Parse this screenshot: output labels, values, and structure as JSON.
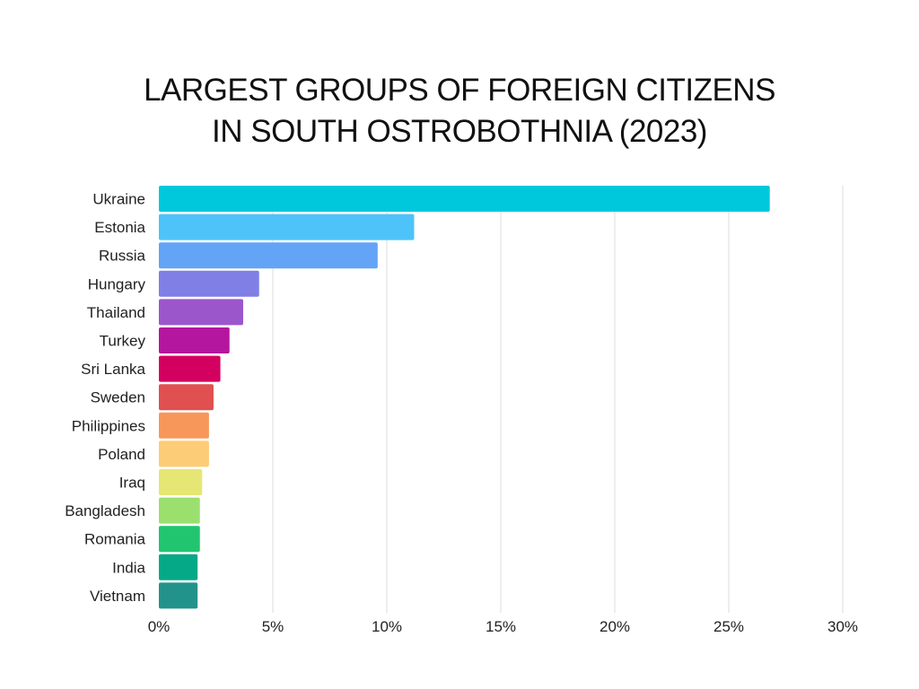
{
  "chart_data": {
    "type": "bar",
    "orientation": "horizontal",
    "title_lines": [
      "LARGEST GROUPS OF FOREIGN CITIZENS",
      "IN SOUTH OSTROBOTHNIA (2023)"
    ],
    "categories": [
      "Ukraine",
      "Estonia",
      "Russia",
      "Hungary",
      "Thailand",
      "Turkey",
      "Sri Lanka",
      "Sweden",
      "Philippines",
      "Poland",
      "Iraq",
      "Bangladesh",
      "Romania",
      "India",
      "Vietnam"
    ],
    "values": [
      26.8,
      11.2,
      9.6,
      4.4,
      3.7,
      3.1,
      2.7,
      2.4,
      2.2,
      2.2,
      1.9,
      1.8,
      1.8,
      1.7,
      1.7
    ],
    "colors": [
      "#00c8dc",
      "#4dc3fa",
      "#63a4f7",
      "#7f7fe6",
      "#9b56cc",
      "#b4169f",
      "#d4005f",
      "#e05050",
      "#f7985a",
      "#fdcc76",
      "#e6e675",
      "#9be06e",
      "#22c56f",
      "#06a987",
      "#22938b"
    ],
    "x_ticks": [
      "0%",
      "5%",
      "10%",
      "15%",
      "20%",
      "25%",
      "30%"
    ],
    "x_tick_values": [
      0,
      5,
      10,
      15,
      20,
      25,
      30
    ],
    "xlim": [
      0,
      30
    ],
    "xlabel": "",
    "ylabel": "",
    "grid": "vertical"
  }
}
